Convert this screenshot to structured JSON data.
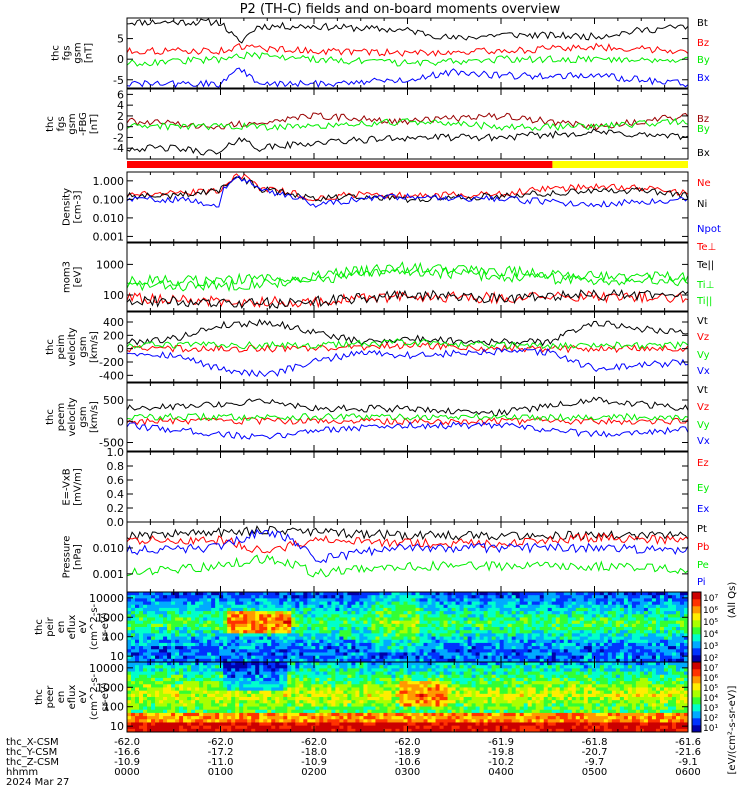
{
  "title": "P2 (TH-C) fields and on-board moments overview",
  "colors": {
    "black": "#000000",
    "red": "#ff0000",
    "green": "#00ee00",
    "blue": "#0000ff",
    "darkred": "#990000",
    "yellow": "#ffff00"
  },
  "chart_data": [
    {
      "type": "line",
      "ylabel": [
        "thc",
        "fgs",
        "gsm",
        "[nT]"
      ],
      "ylim": [
        -7,
        10
      ],
      "yticks": [
        "5",
        "0",
        "-5"
      ],
      "ytick_values": [
        5,
        0,
        -5
      ],
      "series": [
        {
          "name": "Bt",
          "color": "#000000",
          "x": [
            0,
            0.5,
            1.0,
            1.2,
            1.4,
            2.0,
            3.0,
            3.5,
            4.0,
            5.0,
            5.5,
            6.0
          ],
          "values": [
            9,
            9,
            9,
            4,
            8,
            8,
            7,
            5,
            6,
            5.5,
            7,
            8
          ]
        },
        {
          "name": "Bz",
          "color": "#ff0000",
          "x": [
            0,
            1.0,
            1.2,
            2.0,
            3.0,
            4.0,
            5.0,
            6.0
          ],
          "values": [
            2,
            2,
            3,
            2,
            1.5,
            2,
            3,
            2
          ]
        },
        {
          "name": "By",
          "color": "#00ee00",
          "x": [
            0,
            1.0,
            1.2,
            2.0,
            3.0,
            4.0,
            5.0,
            6.0
          ],
          "values": [
            -1,
            0,
            1,
            0,
            -1,
            0,
            0,
            0
          ]
        },
        {
          "name": "Bx",
          "color": "#0000ff",
          "x": [
            0,
            0.5,
            1.0,
            1.2,
            1.4,
            2.0,
            3.0,
            3.5,
            4.0,
            5.0,
            5.5,
            6.0
          ],
          "values": [
            -6,
            -6,
            -6,
            -2,
            -6,
            -6,
            -5,
            -3,
            -4,
            -4,
            -5,
            -6
          ]
        }
      ]
    },
    {
      "type": "line",
      "ylabel": [
        "thc",
        "fgs",
        "gsm",
        "-FBG",
        "[nT]"
      ],
      "ylim": [
        -6,
        7
      ],
      "yticks": [
        "6",
        "4",
        "2",
        "0",
        "-2",
        "-4"
      ],
      "ytick_values": [
        6,
        4,
        2,
        0,
        -2,
        -4
      ],
      "series": [
        {
          "name": "Bz",
          "color": "#990000",
          "x": [
            0,
            1.0,
            2.0,
            3.0,
            4.0,
            5.0,
            6.0
          ],
          "values": [
            1,
            0,
            2,
            1,
            2,
            0,
            2
          ]
        },
        {
          "name": "By",
          "color": "#00ee00",
          "x": [
            0,
            1.0,
            2.0,
            3.0,
            4.0,
            5.0,
            6.0
          ],
          "values": [
            0,
            0,
            0,
            1,
            0,
            0,
            1
          ]
        },
        {
          "name": "Bx",
          "color": "#000000",
          "x": [
            0,
            0.5,
            1.0,
            1.2,
            1.4,
            2.0,
            3.0,
            4.0,
            5.0,
            6.0
          ],
          "values": [
            -4,
            -4,
            -5,
            -2,
            -4,
            -3,
            -2,
            -2,
            -1,
            -2
          ]
        }
      ]
    },
    {
      "type": "line",
      "yscale": "log",
      "ylabel": [
        "Density",
        "[cm-3]"
      ],
      "ylim": [
        0.0005,
        3
      ],
      "yticks": [
        "1.000",
        "0.100",
        "0.010",
        "0.001"
      ],
      "ytick_values": [
        1,
        0.1,
        0.01,
        0.001
      ],
      "series": [
        {
          "name": "Ne",
          "color": "#ff0000",
          "x": [
            0,
            0.5,
            1.0,
            1.2,
            1.4,
            2.0,
            2.5,
            3.0,
            4.0,
            5.0,
            5.5,
            6.0
          ],
          "values": [
            0.2,
            0.2,
            0.3,
            2,
            0.4,
            0.1,
            0.2,
            0.15,
            0.2,
            0.5,
            0.4,
            0.2
          ]
        },
        {
          "name": "Ni",
          "color": "#000000",
          "x": [
            0,
            0.5,
            1.0,
            1.2,
            1.4,
            2.0,
            2.5,
            3.0,
            4.0,
            5.0,
            5.5,
            6.0
          ],
          "values": [
            0.15,
            0.15,
            0.3,
            1.5,
            0.35,
            0.1,
            0.15,
            0.1,
            0.15,
            0.3,
            0.3,
            0.15
          ]
        },
        {
          "name": "Npot",
          "color": "#0000ff",
          "x": [
            0,
            0.5,
            1.0,
            1.2,
            1.4,
            2.0,
            3.0,
            4.0,
            5.0,
            6.0
          ],
          "values": [
            0.1,
            0.1,
            0.05,
            1.5,
            0.3,
            0.05,
            0.15,
            0.1,
            0.05,
            0.1
          ]
        }
      ]
    },
    {
      "type": "line",
      "yscale": "log",
      "ylabel": [
        "mom3",
        "[eV]"
      ],
      "ylim": [
        30,
        5000
      ],
      "yticks": [
        "1000",
        "100"
      ],
      "ytick_values": [
        1000,
        100
      ],
      "series": [
        {
          "name": "Te⊥",
          "color": "#ff0000",
          "x": [
            0,
            1.0,
            2.0,
            3.0,
            4.0,
            5.0,
            6.0
          ],
          "values": [
            80,
            60,
            60,
            90,
            80,
            90,
            80
          ]
        },
        {
          "name": "Te||",
          "color": "#000000",
          "x": [
            0,
            1.0,
            2.0,
            3.0,
            4.0,
            5.0,
            6.0
          ],
          "values": [
            70,
            50,
            60,
            100,
            80,
            100,
            90
          ]
        },
        {
          "name": "Ti⊥",
          "color": "#00ee00",
          "x": [
            0,
            1.0,
            2.0,
            3.0,
            4.0,
            5.0,
            6.0
          ],
          "values": [
            300,
            300,
            400,
            800,
            600,
            400,
            400
          ]
        },
        {
          "name": "Ti||",
          "color": "#00ee00",
          "x": [
            0,
            1.0,
            2.0,
            3.0,
            4.0,
            5.0,
            6.0
          ],
          "values": [
            200,
            200,
            300,
            600,
            400,
            300,
            300
          ]
        }
      ]
    },
    {
      "type": "line",
      "ylabel": [
        "thc",
        "peim",
        "velocity",
        "gsm",
        "[km/s]"
      ],
      "ylim": [
        -500,
        550
      ],
      "yticks": [
        "400",
        "200",
        "0",
        "-200",
        "-400"
      ],
      "ytick_values": [
        400,
        200,
        0,
        -200,
        -400
      ],
      "series": [
        {
          "name": "Vt",
          "color": "#000000",
          "x": [
            0,
            0.5,
            1.0,
            1.5,
            2.0,
            2.5,
            3.0,
            4.0,
            4.5,
            5.0,
            5.5,
            6.0
          ],
          "values": [
            100,
            150,
            350,
            400,
            250,
            100,
            150,
            100,
            100,
            400,
            300,
            250
          ]
        },
        {
          "name": "Vz",
          "color": "#ff0000",
          "x": [
            0,
            1.0,
            2.0,
            3.0,
            4.0,
            5.0,
            6.0
          ],
          "values": [
            0,
            0,
            0,
            50,
            0,
            0,
            0
          ]
        },
        {
          "name": "Vy",
          "color": "#00ee00",
          "x": [
            0,
            1.0,
            2.0,
            3.0,
            4.0,
            5.0,
            6.0
          ],
          "values": [
            50,
            50,
            50,
            100,
            50,
            50,
            50
          ]
        },
        {
          "name": "Vx",
          "color": "#0000ff",
          "x": [
            0,
            0.5,
            1.0,
            1.5,
            2.0,
            2.5,
            3.0,
            4.0,
            4.5,
            5.0,
            5.5,
            6.0
          ],
          "values": [
            -50,
            -100,
            -300,
            -400,
            -200,
            -50,
            -100,
            -50,
            -50,
            -300,
            -250,
            -200
          ]
        }
      ]
    },
    {
      "type": "line",
      "ylabel": [
        "thc",
        "peem",
        "velocity",
        "gsm",
        "[km/s]"
      ],
      "ylim": [
        -700,
        900
      ],
      "yticks": [
        "500",
        "0",
        "-500"
      ],
      "ytick_values": [
        500,
        0,
        -500
      ],
      "series": [
        {
          "name": "Vt",
          "color": "#000000",
          "x": [
            0,
            1.0,
            1.5,
            2.0,
            3.0,
            4.0,
            5.0,
            6.0
          ],
          "values": [
            300,
            400,
            500,
            300,
            300,
            200,
            500,
            300
          ]
        },
        {
          "name": "Vz",
          "color": "#ff0000",
          "x": [
            0,
            1.0,
            2.0,
            3.0,
            4.0,
            5.0,
            6.0
          ],
          "values": [
            0,
            0,
            0,
            0,
            0,
            0,
            0
          ]
        },
        {
          "name": "Vy",
          "color": "#00ee00",
          "x": [
            0,
            1.0,
            2.0,
            3.0,
            4.0,
            5.0,
            6.0
          ],
          "values": [
            100,
            100,
            100,
            100,
            100,
            100,
            100
          ]
        },
        {
          "name": "Vx",
          "color": "#0000ff",
          "x": [
            0,
            1.0,
            1.5,
            2.0,
            3.0,
            4.0,
            5.0,
            6.0
          ],
          "values": [
            -100,
            -300,
            -400,
            -200,
            -100,
            -100,
            -300,
            -200
          ]
        }
      ]
    },
    {
      "type": "line",
      "ylabel": [
        "E=-VxB",
        "[mV/m]"
      ],
      "ylim": [
        0,
        1.0
      ],
      "yticks": [
        "1.0",
        "0.8",
        "0.6",
        "0.4",
        "0.2",
        "0.0"
      ],
      "ytick_values": [
        1.0,
        0.8,
        0.6,
        0.4,
        0.2,
        0.0
      ],
      "legend": [
        {
          "name": "Ez",
          "color": "#ff0000"
        },
        {
          "name": "Ey",
          "color": "#00ee00"
        },
        {
          "name": "Ex",
          "color": "#0000ff"
        }
      ],
      "series": []
    },
    {
      "type": "line",
      "yscale": "log",
      "ylabel": [
        "Pressure",
        "[nPa]"
      ],
      "ylim": [
        0.0002,
        0.1
      ],
      "yticks": [
        "0.010",
        "0.001"
      ],
      "ytick_values": [
        0.01,
        0.001
      ],
      "series": [
        {
          "name": "Pt",
          "color": "#000000",
          "x": [
            0,
            1.0,
            1.5,
            2.0,
            3.0,
            4.0,
            5.0,
            6.0
          ],
          "values": [
            0.03,
            0.04,
            0.05,
            0.04,
            0.03,
            0.03,
            0.03,
            0.03
          ]
        },
        {
          "name": "Pb",
          "color": "#ff0000",
          "x": [
            0,
            1.0,
            1.5,
            2.0,
            3.0,
            4.0,
            5.0,
            6.0
          ],
          "values": [
            0.02,
            0.02,
            0.005,
            0.02,
            0.015,
            0.015,
            0.025,
            0.02
          ]
        },
        {
          "name": "Pe",
          "color": "#00ee00",
          "x": [
            0,
            1.0,
            1.5,
            2.0,
            3.0,
            4.0,
            5.0,
            6.0
          ],
          "values": [
            0.001,
            0.002,
            0.004,
            0.001,
            0.002,
            0.002,
            0.002,
            0.0015
          ]
        },
        {
          "name": "Pi",
          "color": "#0000ff",
          "x": [
            0,
            1.0,
            1.5,
            2.0,
            3.0,
            4.0,
            5.0,
            6.0
          ],
          "values": [
            0.008,
            0.01,
            0.04,
            0.003,
            0.01,
            0.01,
            0.01,
            0.008
          ]
        }
      ]
    },
    {
      "type": "heatmap",
      "yscale": "log",
      "ylabel": [
        "thc",
        "peir",
        "en",
        "eflux",
        "eV",
        "(cm^2-s-",
        "sr-eV)"
      ],
      "ylim": [
        5,
        20000
      ],
      "yticks": [
        "10000",
        "1000",
        "100",
        "10"
      ],
      "ytick_values": [
        10000,
        1000,
        100,
        10
      ],
      "colorbar": {
        "ticks": [
          "10⁷",
          "10⁶",
          "10⁵",
          "10⁴",
          "10³",
          "10²"
        ],
        "label": "[eV/(cm²-s-sr-eV)]"
      }
    },
    {
      "type": "heatmap",
      "yscale": "log",
      "ylabel": [
        "thc",
        "peer",
        "en",
        "eflux",
        "eV",
        "(cm^2-s-",
        "sr-eV)"
      ],
      "ylim": [
        5,
        20000
      ],
      "yticks": [
        "10000",
        "1000",
        "100",
        "10"
      ],
      "ytick_values": [
        10000,
        1000,
        100,
        10
      ],
      "colorbar": {
        "ticks": [
          "10⁷",
          "10⁶",
          "10⁵",
          "10⁴",
          "10³",
          "10²",
          "10¹"
        ],
        "label": "[eV/(cm²-s-sr-eV)]"
      }
    }
  ],
  "mode_bar": [
    {
      "from": 0,
      "to": 4.55,
      "color": "#ff0000"
    },
    {
      "from": 4.55,
      "to": 6.0,
      "color": "#ffff00"
    }
  ],
  "colorbar_title": "(All Qs)",
  "xaxis": {
    "xlim": [
      0,
      6
    ],
    "ticks_x": [
      0,
      1,
      2,
      3,
      4,
      5,
      6
    ],
    "rows": [
      {
        "label": "thc_X-CSM",
        "values": [
          "-62.0",
          "-62.0",
          "-62.0",
          "-62.0",
          "-61.9",
          "-61.8",
          "-61.6"
        ]
      },
      {
        "label": "thc_Y-CSM",
        "values": [
          "-16.6",
          "-17.2",
          "-18.0",
          "-18.9",
          "-19.8",
          "-20.7",
          "-21.6"
        ]
      },
      {
        "label": "thc_Z-CSM",
        "values": [
          "-10.9",
          "-11.0",
          "-10.9",
          "-10.6",
          "-10.2",
          "-9.7",
          "-9.1"
        ]
      },
      {
        "label": "hhmm",
        "values": [
          "0000",
          "0100",
          "0200",
          "0300",
          "0400",
          "0500",
          "0600"
        ]
      }
    ],
    "date": "2024 Mar 27"
  }
}
